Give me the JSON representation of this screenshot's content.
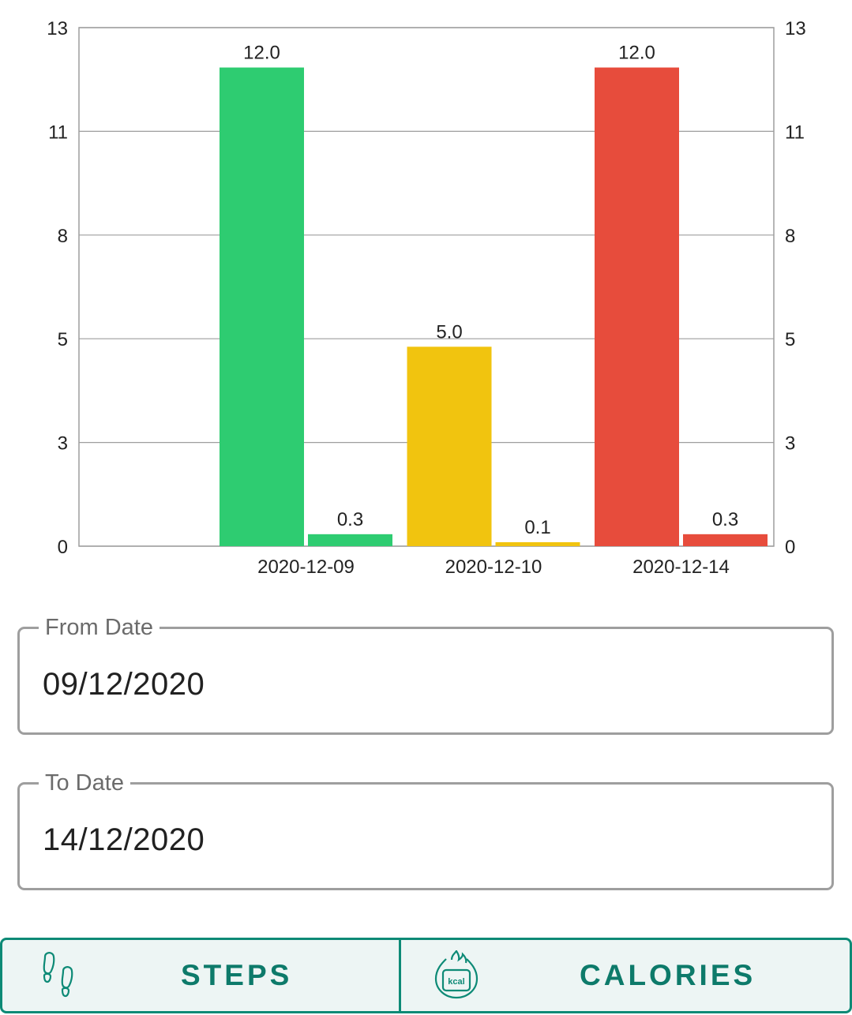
{
  "chart_data": {
    "type": "bar",
    "categories": [
      "2020-12-09",
      "2020-12-10",
      "2020-12-14"
    ],
    "series": [
      {
        "name": "primary",
        "values": [
          12.0,
          5.0,
          12.0
        ],
        "labels": [
          "12.0",
          "5.0",
          "12.0"
        ]
      },
      {
        "name": "secondary",
        "values": [
          0.3,
          0.1,
          0.3
        ],
        "labels": [
          "0.3",
          "0.1",
          "0.3"
        ]
      }
    ],
    "category_colors": [
      "#2ecc71",
      "#f1c40f",
      "#e74c3c"
    ],
    "yticks": [
      "0",
      "3",
      "5",
      "8",
      "11",
      "13"
    ],
    "ylim": [
      0,
      13
    ],
    "grid": true,
    "left_axis": true,
    "right_axis": true,
    "xlabel": "",
    "ylabel": ""
  },
  "form": {
    "from_label": "From Date",
    "from_value": "09/12/2020",
    "to_label": "To Date",
    "to_value": "14/12/2020"
  },
  "tabs": {
    "steps_label": "STEPS",
    "steps_icon": "footprints-icon",
    "calories_label": "CALORIES",
    "calories_icon": "kcal-flame-icon",
    "calories_icon_text": "kcal",
    "accent": "#0d8a76"
  }
}
